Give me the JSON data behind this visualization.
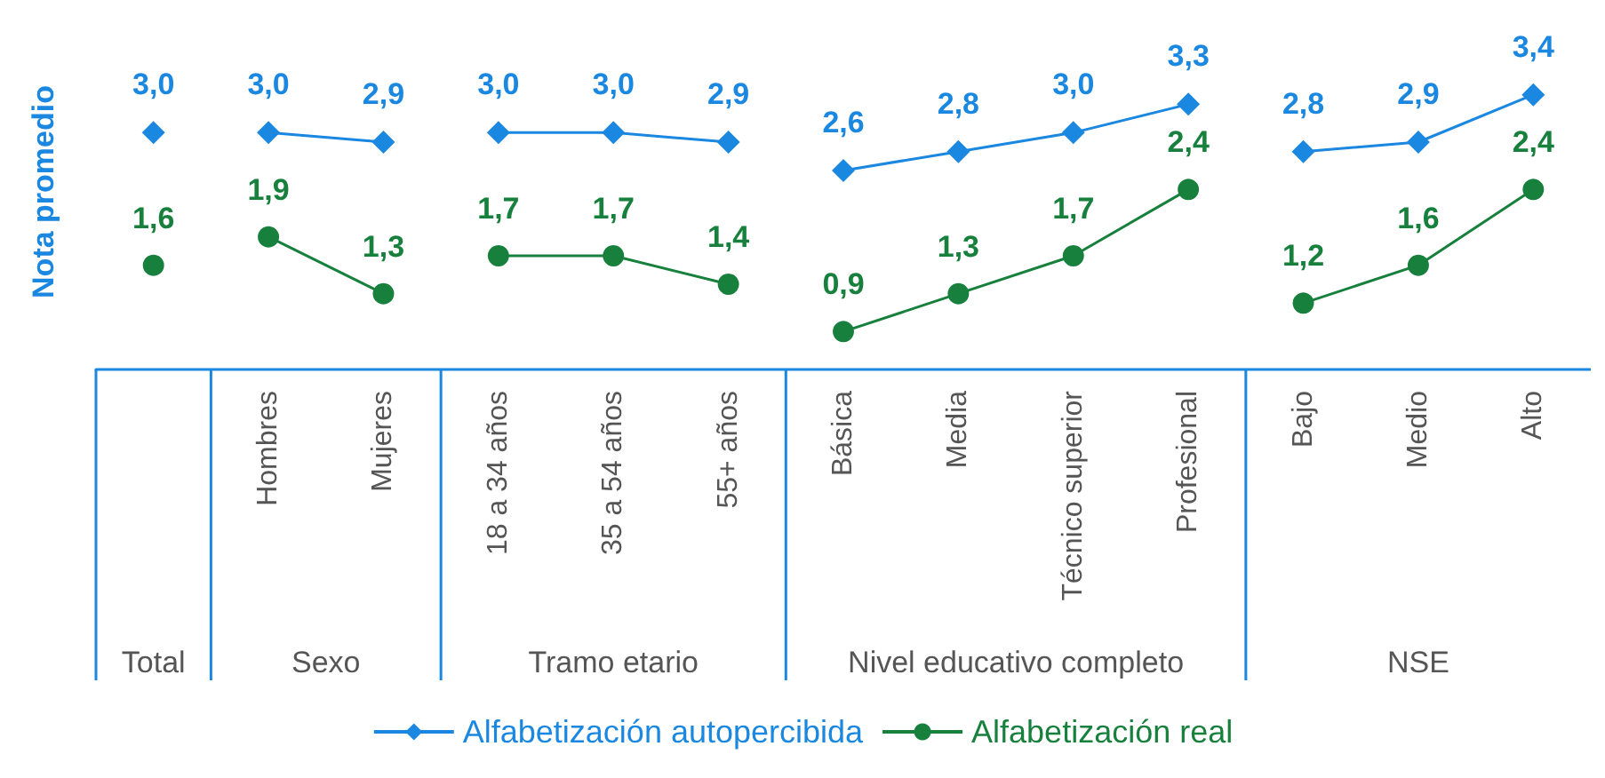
{
  "chart_data": {
    "type": "line",
    "ylabel": "Nota promedio",
    "categories": [
      null,
      "Hombres",
      "Mujeres",
      "18 a 34 años",
      "35 a 54 años",
      "55+ años",
      "Básica",
      "Media",
      "Técnico superior",
      "Profesional",
      "Bajo",
      "Medio",
      "Alto"
    ],
    "annotations": [
      "Total",
      "Sexo",
      "Tramo etario",
      "Nivel educativo completo",
      "NSE"
    ],
    "series": [
      {
        "name": "Alfabetización autopercibida",
        "color": "#1a87e0",
        "marker": "diamond",
        "x": [
          "Hombres",
          "Mujeres"
        ],
        "values": [
          3.0,
          2.9
        ],
        "value_labels": [
          "3,0",
          "2,9"
        ]
      },
      {
        "type": "scatter",
        "color": "#1a87e0",
        "marker": "diamond",
        "x": [
          null
        ],
        "values": [
          3.0
        ],
        "value_labels": [
          "3,0"
        ]
      },
      {
        "color": "#1a87e0",
        "marker": "diamond",
        "x": [
          "18 a 34 años",
          "35 a 54 años",
          "55+ años"
        ],
        "values": [
          3.0,
          3.0,
          2.9
        ],
        "value_labels": [
          "3,0",
          "3,0",
          "2,9"
        ]
      },
      {
        "color": "#1a87e0",
        "marker": "diamond",
        "x": [
          "Básica",
          "Media",
          "Técnico superior",
          "Profesional"
        ],
        "values": [
          2.6,
          2.8,
          3.0,
          3.3
        ],
        "value_labels": [
          "2,6",
          "2,8",
          "3,0",
          "3,3"
        ]
      },
      {
        "color": "#1a87e0",
        "marker": "diamond",
        "x": [
          "Bajo",
          "Medio",
          "Alto"
        ],
        "values": [
          2.8,
          2.9,
          3.4
        ],
        "value_labels": [
          "2,8",
          "2,9",
          "3,4"
        ]
      },
      {
        "name": "Alfabetización real",
        "color": "#17803d",
        "marker": "circle",
        "x": [
          "Hombres",
          "Mujeres"
        ],
        "values": [
          1.9,
          1.3
        ],
        "value_labels": [
          "1,9",
          "1,3"
        ]
      },
      {
        "type": "scatter",
        "color": "#17803d",
        "marker": "circle",
        "x": [
          null
        ],
        "values": [
          1.6
        ],
        "value_labels": [
          "1,6"
        ]
      },
      {
        "color": "#17803d",
        "marker": "circle",
        "x": [
          "18 a 34 años",
          "35 a 54 años",
          "55+ años"
        ],
        "values": [
          1.7,
          1.7,
          1.4
        ],
        "value_labels": [
          "1,7",
          "1,7",
          "1,4"
        ]
      },
      {
        "color": "#17803d",
        "marker": "circle",
        "x": [
          "Básica",
          "Media",
          "Técnico superior",
          "Profesional"
        ],
        "values": [
          0.9,
          1.3,
          1.7,
          2.4
        ],
        "value_labels": [
          "0,9",
          "1,3",
          "1,7",
          "2,4"
        ]
      },
      {
        "color": "#17803d",
        "marker": "circle",
        "x": [
          "Bajo",
          "Medio",
          "Alto"
        ],
        "values": [
          1.2,
          1.6,
          2.4
        ],
        "value_labels": [
          "1,2",
          "1,6",
          "2,4"
        ]
      }
    ],
    "tick_labels": "x",
    "grid": false,
    "legend": "bottom"
  }
}
